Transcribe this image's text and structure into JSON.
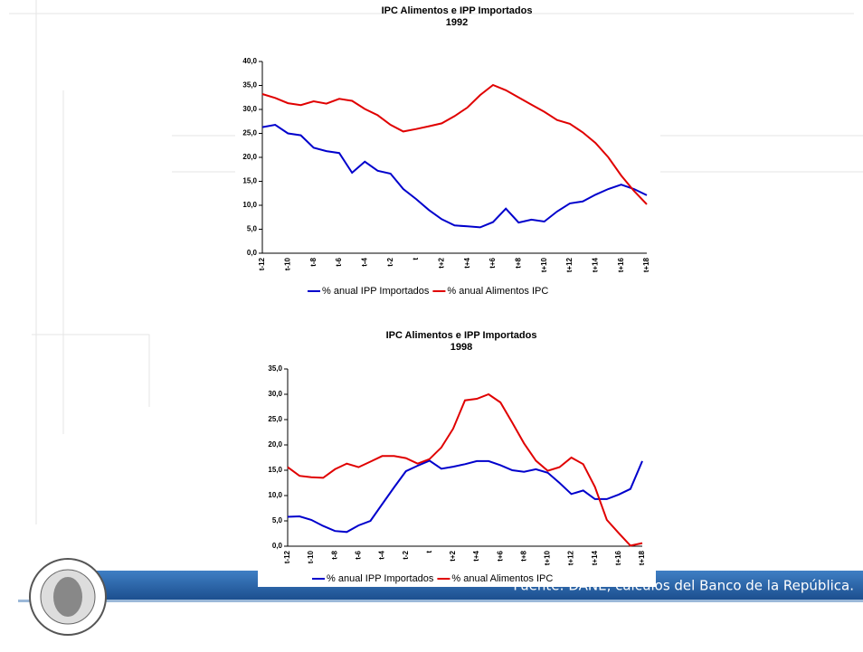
{
  "chart_data": [
    {
      "type": "line",
      "title": "IPC Alimentos e IPP Importados",
      "subtitle": "1992",
      "categories": [
        "t-12",
        null,
        "t-10",
        null,
        "t-8",
        null,
        "t-6",
        null,
        "t-4",
        null,
        "t-2",
        null,
        "t",
        null,
        "t+2",
        null,
        "t+4",
        null,
        "t+6",
        null,
        "t+8",
        null,
        "t+10",
        null,
        "t+12",
        null,
        "t+14",
        null,
        "t+16",
        null,
        "t+18"
      ],
      "series": [
        {
          "name": "% anual IPP Importados",
          "color": "#0000cc",
          "values": [
            26.3,
            26.8,
            25.0,
            24.6,
            22.0,
            21.3,
            20.9,
            16.8,
            19.1,
            17.2,
            16.6,
            13.4,
            11.3,
            9.0,
            7.1,
            5.8,
            5.6,
            5.4,
            6.5,
            9.3,
            6.4,
            7.0,
            6.6,
            8.7,
            10.4,
            10.8,
            12.2,
            13.4,
            14.3,
            13.4,
            12.1
          ]
        },
        {
          "name": "% anual Alimentos IPC",
          "color": "#e00000",
          "values": [
            33.2,
            32.4,
            31.3,
            30.9,
            31.7,
            31.2,
            32.2,
            31.8,
            30.1,
            28.8,
            26.8,
            25.4,
            25.9,
            26.5,
            27.1,
            28.6,
            30.4,
            33.0,
            35.1,
            34.0,
            32.5,
            31.0,
            29.5,
            27.8,
            27.0,
            25.2,
            23.0,
            20.0,
            16.2,
            13.0,
            10.2
          ]
        }
      ],
      "ylim": [
        0,
        40
      ],
      "yticks": [
        {
          "value": 0,
          "label": "0,0"
        },
        {
          "value": 5,
          "label": "5,0"
        },
        {
          "value": 10,
          "label": "10,0"
        },
        {
          "value": 15,
          "label": "15,0"
        },
        {
          "value": 20,
          "label": "20,0"
        },
        {
          "value": 25,
          "label": "25,0"
        },
        {
          "value": 30,
          "label": "30,0"
        },
        {
          "value": 35,
          "label": "35,0"
        },
        {
          "value": 40,
          "label": "40,0"
        }
      ],
      "legend": "bottom"
    },
    {
      "type": "line",
      "title": "IPC Alimentos e IPP Importados",
      "subtitle": "1998",
      "categories": [
        "t-12",
        null,
        "t-10",
        null,
        "t-8",
        null,
        "t-6",
        null,
        "t-4",
        null,
        "t-2",
        null,
        "t",
        null,
        "t+2",
        null,
        "t+4",
        null,
        "t+6",
        null,
        "t+8",
        null,
        "t+10",
        null,
        "t+12",
        null,
        "t+14",
        null,
        "t+16",
        null,
        "t+18"
      ],
      "series": [
        {
          "name": "% anual IPP Importados",
          "color": "#0000cc",
          "values": [
            5.8,
            5.9,
            5.2,
            4.0,
            3.0,
            2.8,
            4.1,
            5.0,
            8.3,
            11.6,
            14.8,
            15.9,
            16.9,
            15.3,
            15.7,
            16.2,
            16.8,
            16.8,
            16.0,
            15.0,
            14.7,
            15.2,
            14.5,
            12.5,
            10.3,
            11.0,
            9.3,
            9.3,
            10.2,
            11.3,
            16.8
          ]
        },
        {
          "name": "% anual Alimentos IPC",
          "color": "#e00000",
          "values": [
            15.6,
            13.9,
            13.6,
            13.5,
            15.2,
            16.3,
            15.6,
            16.7,
            17.8,
            17.8,
            17.4,
            16.3,
            17.2,
            19.5,
            23.2,
            28.8,
            29.1,
            30.0,
            28.4,
            24.4,
            20.3,
            16.9,
            14.9,
            15.6,
            17.5,
            16.2,
            11.7,
            5.2,
            2.6,
            0.1,
            0.6
          ]
        }
      ],
      "ylim": [
        0,
        35
      ],
      "yticks": [
        {
          "value": 0,
          "label": "0,0"
        },
        {
          "value": 5,
          "label": "5,0"
        },
        {
          "value": 10,
          "label": "10,0"
        },
        {
          "value": 15,
          "label": "15,0"
        },
        {
          "value": 20,
          "label": "20,0"
        },
        {
          "value": 25,
          "label": "25,0"
        },
        {
          "value": 30,
          "label": "30,0"
        },
        {
          "value": 35,
          "label": "35,0"
        }
      ],
      "legend": "bottom"
    }
  ],
  "footer": "Fuente: DANE, cálculos del Banco de la República."
}
